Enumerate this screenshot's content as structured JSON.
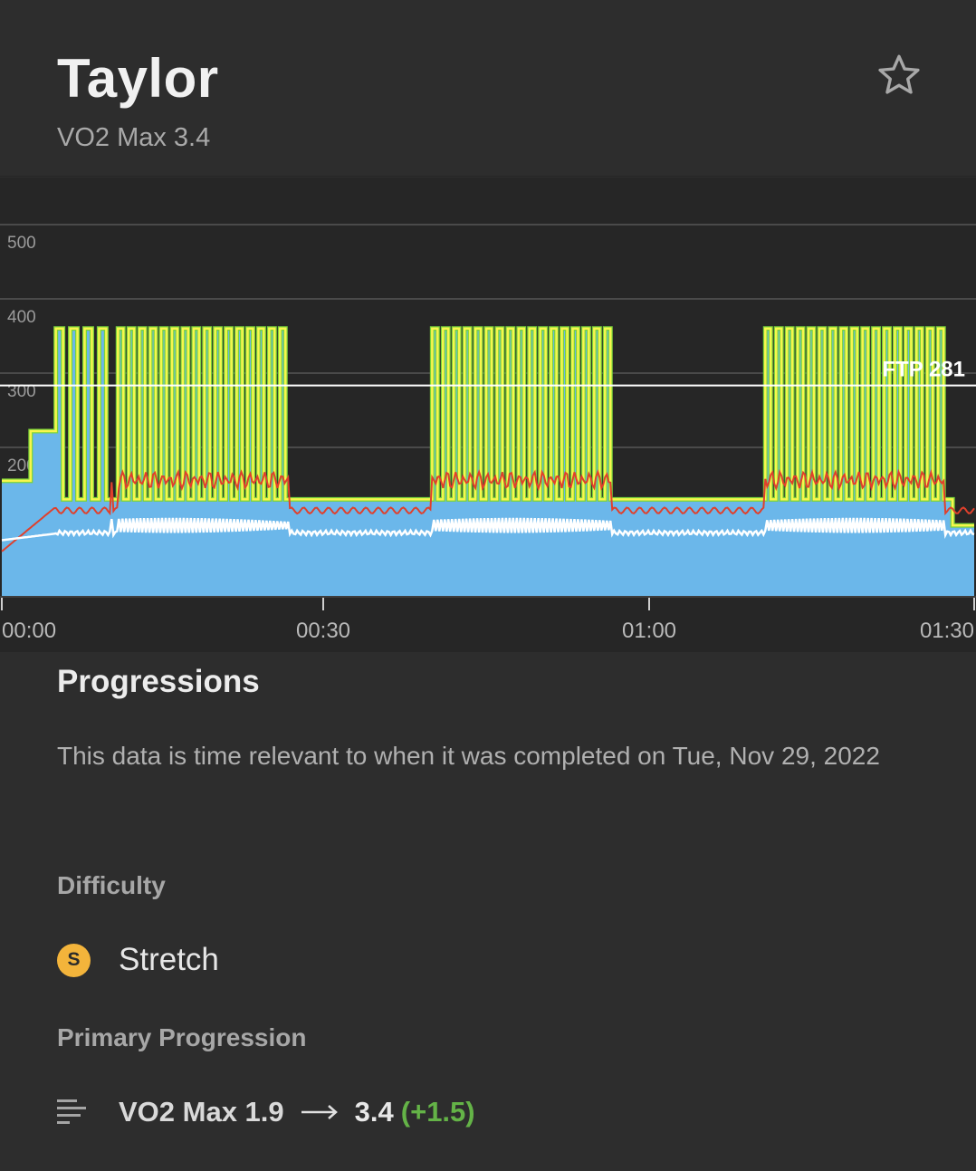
{
  "header": {
    "title": "Taylor",
    "subtitle": "VO2 Max 3.4"
  },
  "chart_data": {
    "type": "area",
    "xlabel": "",
    "ylabel": "",
    "x_ticks": [
      "00:00",
      "00:30",
      "01:00",
      "01:30"
    ],
    "x_range_seconds": [
      0,
      5400
    ],
    "y_ticks": [
      200,
      300,
      400,
      500
    ],
    "y_range": [
      0,
      550
    ],
    "ftp": {
      "label": "FTP 281",
      "value": 281
    },
    "target_power": {
      "warmup_steps": [
        {
          "start": 0,
          "end": 160,
          "watts": 155
        },
        {
          "start": 160,
          "end": 300,
          "watts": 222
        }
      ],
      "on_watts": 360,
      "off_watts": 130,
      "interval_blocks": [
        {
          "start": 300,
          "end": 610,
          "on_off_seconds": 40
        },
        {
          "start": 645,
          "end": 1590,
          "on_off_seconds": 30
        },
        {
          "start": 2390,
          "end": 3380,
          "on_off_seconds": 30
        },
        {
          "start": 4240,
          "end": 5230,
          "on_off_seconds": 30
        }
      ],
      "end_watts": 95
    },
    "heart_rate_baseline": 120,
    "heart_rate_peak": 165,
    "cadence_baseline": 85,
    "cadence_peak": 105,
    "colors": {
      "area": "#6bb7ea",
      "power_line": "#f7f64d",
      "power_edge": "#7bd33b",
      "heart_rate": "#e0402c",
      "cadence": "#ffffff",
      "ftp_line": "#ffffff",
      "grid": "#4a4a4a"
    }
  },
  "progressions": {
    "title": "Progressions",
    "description": "This data is time relevant to when it was completed on Tue, Nov 29, 2022",
    "difficulty_label": "Difficulty",
    "difficulty_badge": "S",
    "difficulty_value": "Stretch",
    "primary_label": "Primary Progression",
    "primary_from": "VO2 Max 1.9",
    "primary_to": "3.4",
    "primary_delta": "(+1.5)",
    "badge_color": "#f3b43b",
    "delta_color": "#64b347"
  }
}
